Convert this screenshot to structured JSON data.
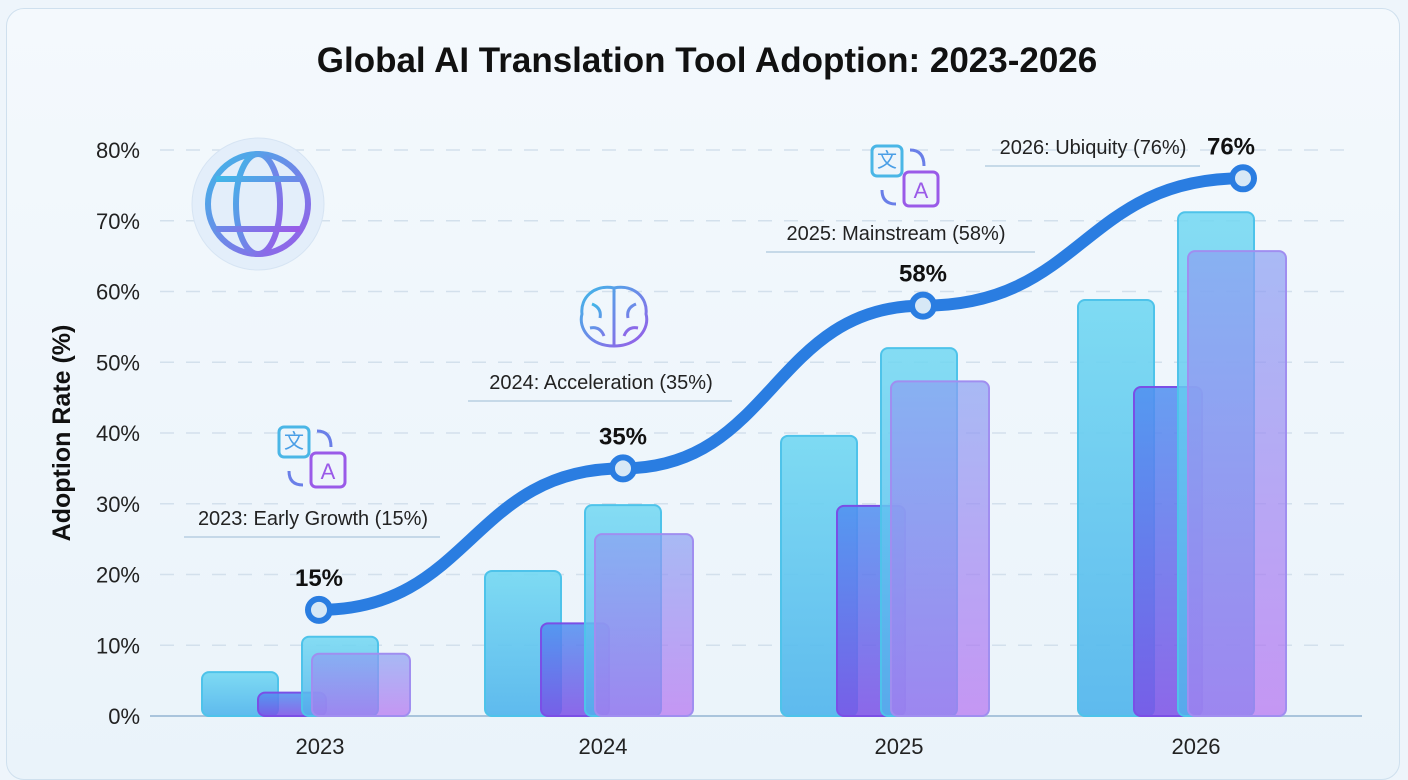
{
  "chart_data": {
    "type": "bar",
    "title": "Global AI Translation Tool Adoption: 2023-2026",
    "ylabel": "Adoption Rate (%)",
    "xlabel": "",
    "ylim": [
      0,
      80
    ],
    "yticks": [
      "0%",
      "10%",
      "20%",
      "30%",
      "40%",
      "50%",
      "60%",
      "70%",
      "80%"
    ],
    "grid": true,
    "categories": [
      "2023",
      "2024",
      "2025",
      "2026"
    ],
    "bar_series": [
      {
        "values": [
          6.2,
          20.5,
          39.6,
          58.8
        ],
        "color": "#5fcdef"
      },
      {
        "values": [
          3.3,
          13.1,
          29.7,
          46.5
        ],
        "color": "#6a7fe8"
      },
      {
        "values": [
          11.2,
          29.8,
          52.0,
          71.2
        ],
        "color": "#5fcdef"
      },
      {
        "values": [
          8.8,
          25.7,
          47.3,
          65.7
        ],
        "color": "#9a8cf0"
      }
    ],
    "line_series": {
      "values": [
        15,
        35,
        58,
        76
      ],
      "labels": [
        "15%",
        "35%",
        "58%",
        "76%"
      ],
      "color": "#2a7de1"
    },
    "annotations": [
      {
        "text": "2023: Early Growth (15%)",
        "icon": "translate-icon"
      },
      {
        "text": "2024: Acceleration (35%)",
        "icon": "brain-icon"
      },
      {
        "text": "2025: Mainstream (58%)",
        "icon": "translate-icon"
      },
      {
        "text": "2026: Ubiquity (76%)",
        "icon": ""
      }
    ],
    "decoration_icon": "globe-icon",
    "colors": {
      "accent": "#2a7de1",
      "cyan": "#5fcdef",
      "purple": "#a86ff0"
    }
  }
}
